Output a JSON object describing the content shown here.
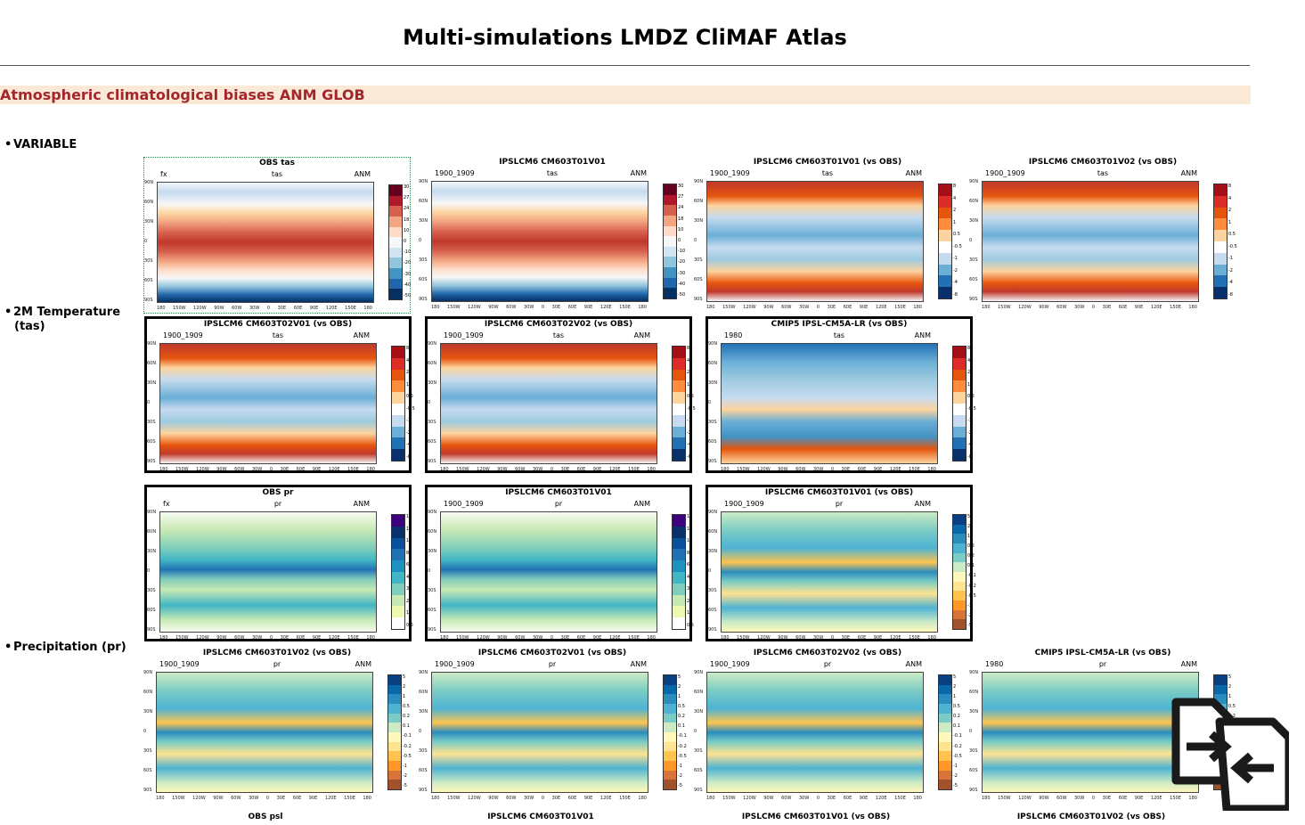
{
  "page": {
    "title": "Multi-simulations LMDZ CliMAF Atlas",
    "section": "Atmospheric climatological biases ANM GLOB"
  },
  "row_labels": {
    "variable": "VARIABLE",
    "tas_line1": "2M Temperature",
    "tas_line2": "(tas)",
    "pr": "Precipitation (pr)"
  },
  "map_axes": {
    "lats": [
      "90N",
      "60N",
      "30N",
      "0",
      "30S",
      "60S",
      "90S"
    ],
    "lons": [
      "180",
      "150W",
      "120W",
      "90W",
      "60W",
      "30W",
      "0",
      "30E",
      "60E",
      "90E",
      "120E",
      "150E",
      "180"
    ]
  },
  "colorbars": {
    "tas_abs": {
      "labels": [
        "30",
        "27",
        "24",
        "18",
        "10",
        "0",
        "-10",
        "-20",
        "-30",
        "-40",
        "-50"
      ],
      "colors": [
        "#67001f",
        "#b2182b",
        "#d6604d",
        "#f4a582",
        "#fddbc7",
        "#f7f7f7",
        "#d1e5f0",
        "#92c5de",
        "#4393c3",
        "#2166ac",
        "#053061"
      ]
    },
    "tas_bias": {
      "labels": [
        "8",
        "4",
        "2",
        "1",
        "0.5",
        "-0.5",
        "-1",
        "-2",
        "-4",
        "-8"
      ],
      "colors": [
        "#a50f15",
        "#de2d26",
        "#e6550d",
        "#fd8d3c",
        "#fdd49e",
        "#ffffff",
        "#c6dbef",
        "#6baed6",
        "#2171b5",
        "#08306b"
      ]
    },
    "pr_abs": {
      "labels": [
        "14",
        "12",
        "10",
        "8",
        "6",
        "4",
        "3",
        "2",
        "1",
        "0.5"
      ],
      "colors": [
        "#3f007d",
        "#08306b",
        "#08519c",
        "#2171b5",
        "#1d91c0",
        "#41b6c4",
        "#7fcdbb",
        "#c7e9b4",
        "#edf8b1",
        "#ffffff"
      ]
    },
    "pr_bias": {
      "labels": [
        "5",
        "2",
        "1",
        "0.5",
        "0.2",
        "0.1",
        "-0.1",
        "-0.2",
        "-0.5",
        "-1",
        "-2",
        "-5"
      ],
      "colors": [
        "#084081",
        "#0868ac",
        "#2b8cbe",
        "#4eb3d3",
        "#7bccc4",
        "#ccebc5",
        "#fff7bc",
        "#fee391",
        "#fec44f",
        "#fe9929",
        "#d8743a",
        "#a0522d"
      ]
    }
  },
  "panels": [
    {
      "title": "OBS tas",
      "left": "fx",
      "mid": "tas",
      "right": "ANM",
      "kind": "tas_abs"
    },
    {
      "title": "IPSLCM6 CM603T01V01",
      "left": "1900_1909",
      "mid": "tas",
      "right": "ANM",
      "kind": "tas_abs"
    },
    {
      "title": "IPSLCM6 CM603T01V01 (vs OBS)",
      "left": "1900_1909",
      "mid": "tas",
      "right": "ANM",
      "kind": "tas_bias"
    },
    {
      "title": "IPSLCM6 CM603T01V02 (vs OBS)",
      "left": "1900_1909",
      "mid": "tas",
      "right": "ANM",
      "kind": "tas_bias"
    },
    {
      "title": "IPSLCM6 CM603T02V01 (vs OBS)",
      "left": "1900_1909",
      "mid": "tas",
      "right": "ANM",
      "kind": "tas_bias"
    },
    {
      "title": "IPSLCM6 CM603T02V02 (vs OBS)",
      "left": "1900_1909",
      "mid": "tas",
      "right": "ANM",
      "kind": "tas_bias"
    },
    {
      "title": "CMIP5 IPSL-CM5A-LR (vs OBS)",
      "left": "1980",
      "mid": "tas",
      "right": "ANM",
      "kind": "tas_bias_cold"
    },
    {
      "title": "OBS pr",
      "left": "fx",
      "mid": "pr",
      "right": "ANM",
      "kind": "pr_abs"
    },
    {
      "title": "IPSLCM6 CM603T01V01",
      "left": "1900_1909",
      "mid": "pr",
      "right": "ANM",
      "kind": "pr_abs"
    },
    {
      "title": "IPSLCM6 CM603T01V01 (vs OBS)",
      "left": "1900_1909",
      "mid": "pr",
      "right": "ANM",
      "kind": "pr_bias"
    },
    {
      "title": "IPSLCM6 CM603T01V02 (vs OBS)",
      "left": "1900_1909",
      "mid": "pr",
      "right": "ANM",
      "kind": "pr_bias"
    },
    {
      "title": "IPSLCM6 CM603T02V01 (vs OBS)",
      "left": "1900_1909",
      "mid": "pr",
      "right": "ANM",
      "kind": "pr_bias"
    },
    {
      "title": "IPSLCM6 CM603T02V02 (vs OBS)",
      "left": "1900_1909",
      "mid": "pr",
      "right": "ANM",
      "kind": "pr_bias"
    },
    {
      "title": "CMIP5 IPSL-CM5A-LR (vs OBS)",
      "left": "1980",
      "mid": "pr",
      "right": "ANM",
      "kind": "pr_bias"
    }
  ],
  "bottom_captions": [
    "OBS psl",
    "IPSLCM6 CM603T01V01",
    "IPSLCM6 CM603T01V01 (vs OBS)",
    "IPSLCM6 CM603T01V02 (vs OBS)"
  ],
  "icons": {
    "compare": "compare-files-icon"
  }
}
